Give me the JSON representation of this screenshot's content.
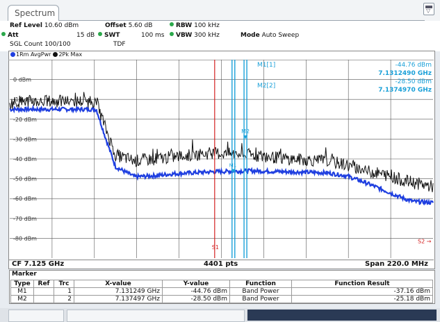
{
  "tab": {
    "label": "Spectrum"
  },
  "settings": {
    "ref_level_label": "Ref Level",
    "ref_level_value": "10.60 dBm",
    "offset_label": "Offset",
    "offset_value": "5.60 dB",
    "rbw_label": "RBW",
    "rbw_value": "100 kHz",
    "att_label": "Att",
    "att_value": "15 dB",
    "swt_label": "SWT",
    "swt_value": "100 ms",
    "vbw_label": "VBW",
    "vbw_value": "300 kHz",
    "mode_label": "Mode",
    "mode_value": "Auto Sweep",
    "sgl_count": "SGL Count 100/100",
    "tdf": "TDF"
  },
  "traces": [
    {
      "label": "1Rm AvgPwr",
      "color": "#1f3fe0"
    },
    {
      "label": "2Pk Max",
      "color": "#111111"
    }
  ],
  "colors": {
    "marker_cyan": "#1aa0d8",
    "s_line_red": "#d42020",
    "trace1": "#1f3fe0",
    "trace2": "#111111"
  },
  "chart_data": {
    "type": "line",
    "ylim": [
      -90,
      10
    ],
    "ytick_labels": [
      "0 dBm",
      "-10 dBm",
      "-20 dBm",
      "-30 dBm",
      "-40 dBm",
      "-50 dBm",
      "-60 dBm",
      "-70 dBm",
      "-80 dBm"
    ],
    "yticks": [
      0,
      -10,
      -20,
      -30,
      -40,
      -50,
      -60,
      -70,
      -80
    ],
    "xlim": [
      7.015,
      7.235
    ],
    "x_unit": "GHz",
    "series": [
      {
        "name": "1Rm AvgPwr",
        "x": [
          7.015,
          7.02,
          7.03,
          7.04,
          7.045,
          7.05,
          7.055,
          7.06,
          7.065,
          7.07,
          7.08,
          7.09,
          7.1,
          7.12,
          7.14,
          7.16,
          7.18,
          7.19,
          7.2,
          7.21,
          7.22,
          7.225,
          7.235
        ],
        "y": [
          -15,
          -15,
          -15,
          -15,
          -15,
          -15,
          -15,
          -15,
          -30,
          -44,
          -49,
          -48.5,
          -47.5,
          -46.5,
          -46,
          -46.5,
          -47,
          -48.5,
          -52,
          -56,
          -60,
          -61.5,
          -62
        ]
      },
      {
        "name": "2Pk Max",
        "x": [
          7.015,
          7.02,
          7.03,
          7.04,
          7.045,
          7.05,
          7.055,
          7.06,
          7.065,
          7.07,
          7.08,
          7.09,
          7.1,
          7.12,
          7.14,
          7.16,
          7.18,
          7.19,
          7.2,
          7.21,
          7.22,
          7.225,
          7.235
        ],
        "y": [
          -12,
          -11,
          -11,
          -11,
          -11,
          -11,
          -11,
          -11,
          -25,
          -38,
          -41,
          -40,
          -39,
          -37,
          -38,
          -40,
          -41,
          -43,
          -46,
          -48,
          -51,
          -52,
          -54
        ]
      }
    ],
    "markers": [
      {
        "name": "M1",
        "label": "M1[1]",
        "x": 7.131249,
        "y": -44.76,
        "value_text": "-44.76 dBm",
        "freq_text": "7.1312490 GHz"
      },
      {
        "name": "M2",
        "label": "M2[2]",
        "x": 7.137497,
        "y": -28.5,
        "value_text": "-28.50 dBm",
        "freq_text": "7.1374970 GHz"
      }
    ],
    "channel_lines": [
      {
        "name": "S1",
        "x": 7.1215
      },
      {
        "name": "S2",
        "x": 7.235
      }
    ]
  },
  "footer": {
    "cf": "CF 7.125 GHz",
    "pts": "4401 pts",
    "span": "Span 220.0 MHz"
  },
  "marker_table": {
    "title": "Marker",
    "headers": [
      "Type",
      "Ref",
      "Trc",
      "X-value",
      "Y-value",
      "Function",
      "Function Result"
    ],
    "rows": [
      [
        "M1",
        "",
        "1",
        "7.131249 GHz",
        "-44.76 dBm",
        "Band Power",
        "-37.16 dBm"
      ],
      [
        "M2",
        "",
        "2",
        "7.137497 GHz",
        "-28.50 dBm",
        "Band Power",
        "-25.18 dBm"
      ]
    ]
  }
}
